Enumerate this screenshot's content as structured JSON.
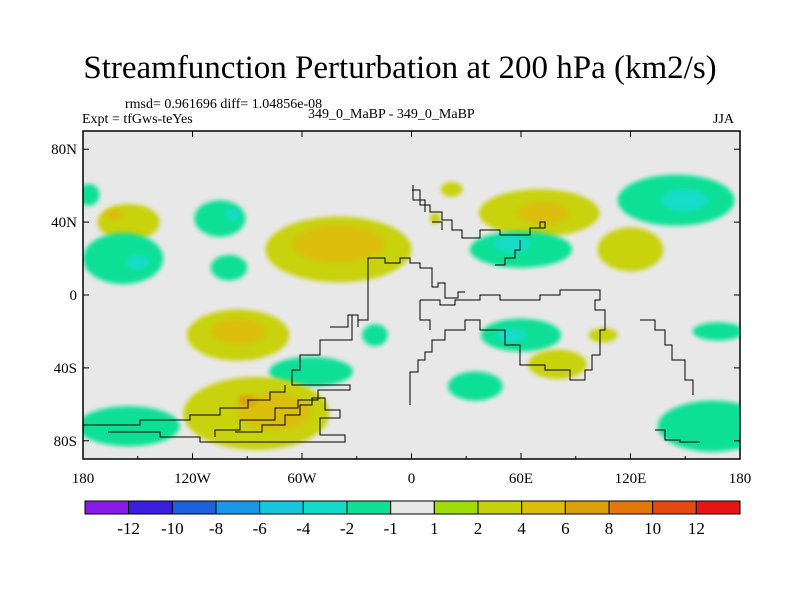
{
  "chart_data": {
    "type": "heatmap",
    "title": "Streamfunction Perturbation at 200 hPa (km2/s)",
    "left_subtitle": "Expt = tfGws-teYes",
    "center_subtitle": "349_0_MaBP - 349_0_MaBP",
    "right_subtitle": "JJA",
    "stats": "rmsd= 0.961696 diff= 1.04856e-08",
    "x_range": [
      -180,
      180
    ],
    "y_range": [
      -90,
      90
    ],
    "x_ticks": [
      {
        "value": -180,
        "label": "180"
      },
      {
        "value": -120,
        "label": "120W"
      },
      {
        "value": -60,
        "label": "60W"
      },
      {
        "value": 0,
        "label": "0"
      },
      {
        "value": 60,
        "label": "60E"
      },
      {
        "value": 120,
        "label": "120E"
      },
      {
        "value": 180,
        "label": "180"
      }
    ],
    "y_ticks": [
      {
        "value": 80,
        "label": "80N"
      },
      {
        "value": 40,
        "label": "40N"
      },
      {
        "value": 0,
        "label": "0"
      },
      {
        "value": -40,
        "label": "40S"
      },
      {
        "value": -80,
        "label": "80S"
      }
    ],
    "colorbar": {
      "colors": [
        "#8a1be6",
        "#3c1ee0",
        "#1e5fdc",
        "#1a98e8",
        "#15c6dc",
        "#14dcc8",
        "#10e096",
        "#e8e8e8",
        "#a0dc0a",
        "#c8d20a",
        "#dcbe0a",
        "#dca00a",
        "#e0780a",
        "#e44a10",
        "#e61414"
      ],
      "labels": [
        "-12",
        "-10",
        "-8",
        "-6",
        "-4",
        "-2",
        "-1",
        "1",
        "2",
        "4",
        "6",
        "8",
        "10",
        "12"
      ]
    },
    "contour_blobs": [
      {
        "lon": -177,
        "lat": 55,
        "rlon": 6,
        "rlat": 6,
        "level": "-1"
      },
      {
        "lon": -155,
        "lat": 40,
        "rlon": 17,
        "rlat": 10,
        "level": "2"
      },
      {
        "lon": -163,
        "lat": 44,
        "rlon": 5,
        "rlat": 3,
        "level": "4"
      },
      {
        "lon": -158,
        "lat": 20,
        "rlon": 22,
        "rlat": 14,
        "level": "-1"
      },
      {
        "lon": -150,
        "lat": 18,
        "rlon": 6,
        "rlat": 4,
        "level": "-2"
      },
      {
        "lon": -105,
        "lat": 42,
        "rlon": 14,
        "rlat": 10,
        "level": "-1"
      },
      {
        "lon": -98,
        "lat": 44,
        "rlon": 4,
        "rlat": 3,
        "level": "-2"
      },
      {
        "lon": -100,
        "lat": 15,
        "rlon": 10,
        "rlat": 7,
        "level": "-1"
      },
      {
        "lon": -40,
        "lat": 25,
        "rlon": 40,
        "rlat": 18,
        "level": "2"
      },
      {
        "lon": -40,
        "lat": 28,
        "rlon": 25,
        "rlat": 10,
        "level": "4"
      },
      {
        "lon": 22,
        "lat": 58,
        "rlon": 6,
        "rlat": 4,
        "level": "2"
      },
      {
        "lon": 13,
        "lat": 42,
        "rlon": 3,
        "rlat": 3,
        "level": "2"
      },
      {
        "lon": 70,
        "lat": 45,
        "rlon": 33,
        "rlat": 13,
        "level": "2"
      },
      {
        "lon": 72,
        "lat": 45,
        "rlon": 14,
        "rlat": 6,
        "level": "4"
      },
      {
        "lon": 145,
        "lat": 52,
        "rlon": 32,
        "rlat": 14,
        "level": "-1"
      },
      {
        "lon": 150,
        "lat": 52,
        "rlon": 13,
        "rlat": 6,
        "level": "-2"
      },
      {
        "lon": 60,
        "lat": 25,
        "rlon": 28,
        "rlat": 10,
        "level": "-1"
      },
      {
        "lon": 55,
        "lat": 28,
        "rlon": 10,
        "rlat": 5,
        "level": "-2"
      },
      {
        "lon": 120,
        "lat": 25,
        "rlon": 18,
        "rlat": 12,
        "level": "2"
      },
      {
        "lon": -95,
        "lat": -22,
        "rlon": 28,
        "rlat": 14,
        "level": "2"
      },
      {
        "lon": -95,
        "lat": -20,
        "rlon": 15,
        "rlat": 7,
        "level": "4"
      },
      {
        "lon": -55,
        "lat": -42,
        "rlon": 23,
        "rlat": 8,
        "level": "-1"
      },
      {
        "lon": -20,
        "lat": -22,
        "rlon": 7,
        "rlat": 6,
        "level": "-1"
      },
      {
        "lon": 60,
        "lat": -22,
        "rlon": 22,
        "rlat": 9,
        "level": "-1"
      },
      {
        "lon": 55,
        "lat": -22,
        "rlon": 8,
        "rlat": 4,
        "level": "-2"
      },
      {
        "lon": 80,
        "lat": -38,
        "rlon": 16,
        "rlat": 8,
        "level": "2"
      },
      {
        "lon": 35,
        "lat": -50,
        "rlon": 15,
        "rlat": 8,
        "level": "-1"
      },
      {
        "lon": 105,
        "lat": -22,
        "rlon": 8,
        "rlat": 4,
        "level": "2"
      },
      {
        "lon": 168,
        "lat": -20,
        "rlon": 14,
        "rlat": 5,
        "level": "-1"
      },
      {
        "lon": -85,
        "lat": -65,
        "rlon": 40,
        "rlat": 20,
        "level": "2"
      },
      {
        "lon": -75,
        "lat": -64,
        "rlon": 20,
        "rlat": 10,
        "level": "4"
      },
      {
        "lon": -90,
        "lat": -58,
        "rlon": 5,
        "rlat": 3,
        "level": "6"
      },
      {
        "lon": -155,
        "lat": -72,
        "rlon": 28,
        "rlat": 11,
        "level": "-1"
      },
      {
        "lon": 165,
        "lat": -72,
        "rlon": 30,
        "rlat": 14,
        "level": "-1"
      }
    ]
  }
}
